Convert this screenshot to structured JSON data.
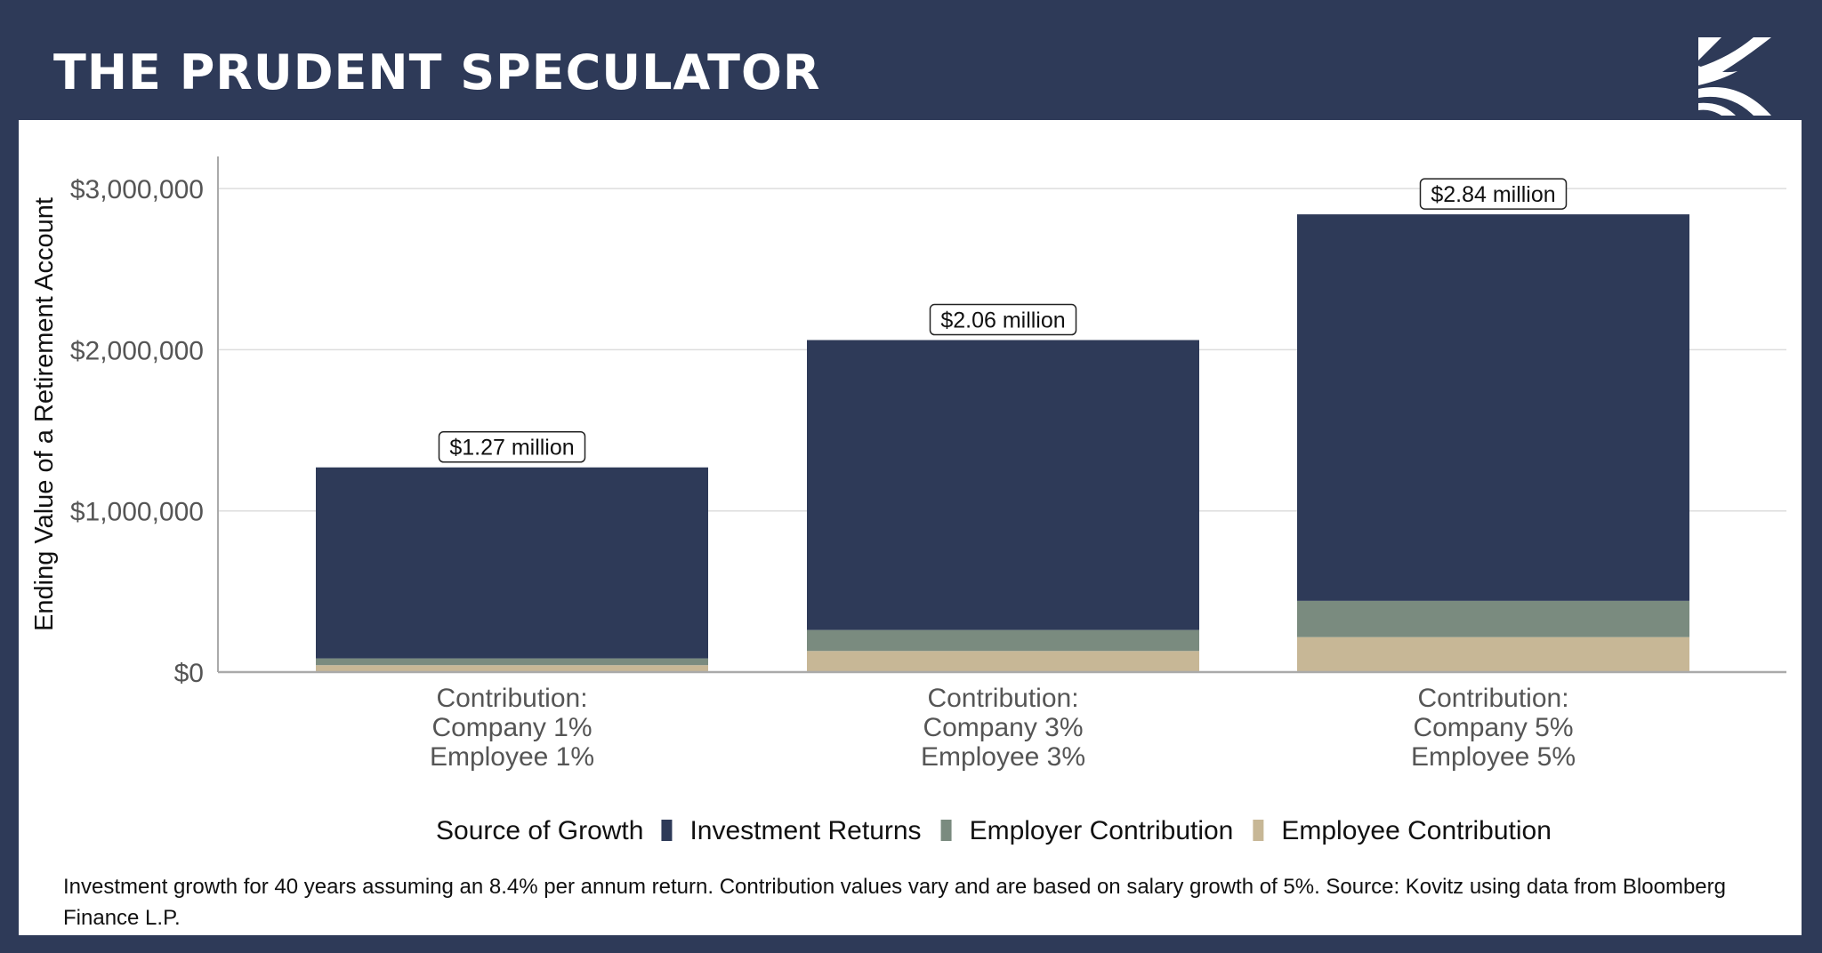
{
  "header": {
    "title": "THE PRUDENT SPECULATOR",
    "logo": "kovitz-k-logo"
  },
  "colors": {
    "background": "#2e3a58",
    "investment_returns": "#2e3a58",
    "employer_contribution": "#7a8b7f",
    "employee_contribution": "#c7b796"
  },
  "chart_data": {
    "type": "bar",
    "stacked": true,
    "ylabel": "Ending Value of a Retirement Account",
    "ylim": [
      0,
      3200000
    ],
    "yticks": [
      0,
      1000000,
      2000000,
      3000000
    ],
    "ytick_labels": [
      "$0",
      "$1,000,000",
      "$2,000,000",
      "$3,000,000"
    ],
    "grid": "horizontal",
    "categories": [
      [
        "Contribution:",
        "Company 1%",
        "Employee 1%"
      ],
      [
        "Contribution:",
        "Company 3%",
        "Employee 3%"
      ],
      [
        "Contribution:",
        "Company 5%",
        "Employee 5%"
      ]
    ],
    "legend_title": "Source of Growth",
    "legend_position": "bottom",
    "series": [
      {
        "name": "Employee Contribution",
        "values": [
          43000,
          131000,
          217000
        ]
      },
      {
        "name": "Employer Contribution",
        "values": [
          42000,
          130000,
          225000
        ]
      },
      {
        "name": "Investment Returns",
        "values": [
          1185000,
          1799000,
          2398000
        ]
      }
    ],
    "legend_order": [
      "Investment Returns",
      "Employer Contribution",
      "Employee Contribution"
    ],
    "totals": [
      1270000,
      2060000,
      2840000
    ],
    "total_labels": [
      "$1.27 million",
      "$2.06 million",
      "$2.84 million"
    ]
  },
  "footnote": "Investment growth for 40 years assuming an 8.4% per annum return. Contribution values vary and are based on salary growth of 5%. Source: Kovitz using data from Bloomberg Finance L.P."
}
